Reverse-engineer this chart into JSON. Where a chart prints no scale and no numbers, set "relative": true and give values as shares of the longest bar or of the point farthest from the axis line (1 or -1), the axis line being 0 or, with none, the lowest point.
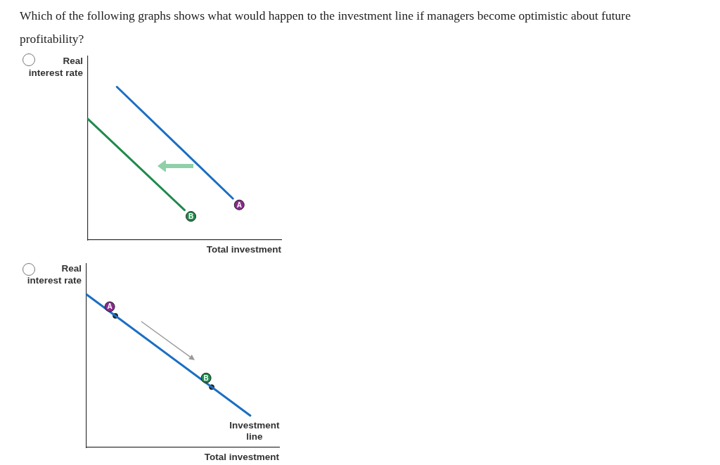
{
  "chart_data": [
    {
      "type": "line",
      "title": "Which of the following graphs shows what would happen to the investment line if managers become optimistic about future profitability?",
      "xlabel": "Total investment",
      "ylabel": "Real interest rate",
      "relative": true,
      "grid": false,
      "legend": false,
      "categories": [
        null,
        null,
        null,
        null,
        null,
        null,
        null,
        null,
        null,
        null,
        null,
        null,
        null,
        null,
        null,
        null,
        null,
        null,
        null,
        null,
        null
      ],
      "series": [
        {
          "color": "#1a6fc4",
          "values": [
            null,
            null,
            null,
            1,
            null,
            null,
            null,
            null,
            null,
            null,
            null,
            null,
            null,
            null,
            null,
            0.27,
            null,
            null,
            null,
            null,
            null
          ]
        },
        {
          "color": "#1e8a4c",
          "values": [
            0.79,
            null,
            null,
            null,
            null,
            null,
            null,
            null,
            null,
            null,
            0.195,
            null,
            null,
            null,
            null,
            null,
            null,
            null,
            null,
            null,
            null
          ]
        }
      ],
      "annotations": [
        "A",
        "B"
      ]
    },
    {
      "type": "line",
      "xlabel": "Total investment",
      "ylabel": "Real interest rate",
      "relative": true,
      "grid": false,
      "legend": false,
      "categories": [
        null,
        null,
        null,
        null,
        null,
        null,
        null,
        null,
        null,
        null,
        null,
        null,
        null,
        null,
        null,
        null,
        null,
        null,
        null,
        null,
        null
      ],
      "series": [
        {
          "name": "Investment line",
          "color": "#1a6fc4",
          "values": [
            1,
            null,
            null,
            null,
            null,
            null,
            null,
            null,
            null,
            null,
            null,
            null,
            null,
            null,
            null,
            null,
            null,
            0.208,
            null,
            null,
            null
          ]
        },
        {
          "type": "scatter",
          "color": "#222222",
          "marker": "circle",
          "values": [
            null,
            null,
            null,
            0.86,
            null,
            null,
            null,
            null,
            null,
            null,
            null,
            null,
            null,
            0.394,
            null,
            null,
            null,
            null,
            null,
            null,
            null
          ]
        }
      ],
      "annotations": [
        "A",
        "B"
      ]
    }
  ]
}
